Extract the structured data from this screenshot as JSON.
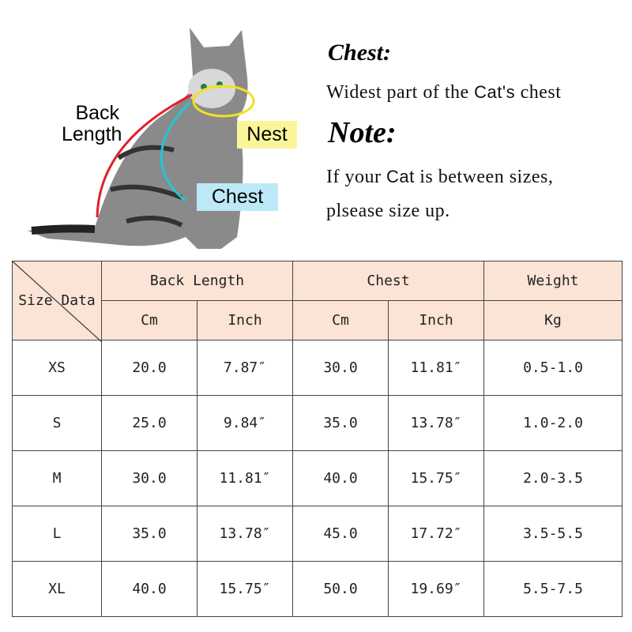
{
  "diagram": {
    "back_length_label": [
      "Back",
      "Length"
    ],
    "nest_label": "Nest",
    "chest_label": "Chest",
    "colors": {
      "back": "#e0202a",
      "nest": "#f2e020",
      "chest": "#20c8d8",
      "nest_bg": "#fbf59a",
      "chest_bg": "#bde9f7"
    }
  },
  "info": {
    "chest_heading": "Chest:",
    "chest_text_pre": "Widest part of the",
    "chest_text_word": "Cat's",
    "chest_text_post": "chest",
    "note_heading": "Note:",
    "note_pre": "If your",
    "note_word": "Cat",
    "note_post": "is between sizes,",
    "note_line2": "plsease size up."
  },
  "table": {
    "corner_left": "Size",
    "corner_right": "Data",
    "groups": [
      "Back Length",
      "Chest",
      "Weight"
    ],
    "units": [
      "Cm",
      "Inch",
      "Cm",
      "Inch",
      "Kg"
    ],
    "rows": [
      [
        "XS",
        "20.0",
        "7.87″",
        "30.0",
        "11.81″",
        "0.5-1.0"
      ],
      [
        "S",
        "25.0",
        "9.84″",
        "35.0",
        "13.78″",
        "1.0-2.0"
      ],
      [
        "M",
        "30.0",
        "11.81″",
        "40.0",
        "15.75″",
        "2.0-3.5"
      ],
      [
        "L",
        "35.0",
        "13.78″",
        "45.0",
        "17.72″",
        "3.5-5.5"
      ],
      [
        "XL",
        "40.0",
        "15.75″",
        "50.0",
        "19.69″",
        "5.5-7.5"
      ]
    ],
    "header_bg": "#fbe4d5"
  }
}
